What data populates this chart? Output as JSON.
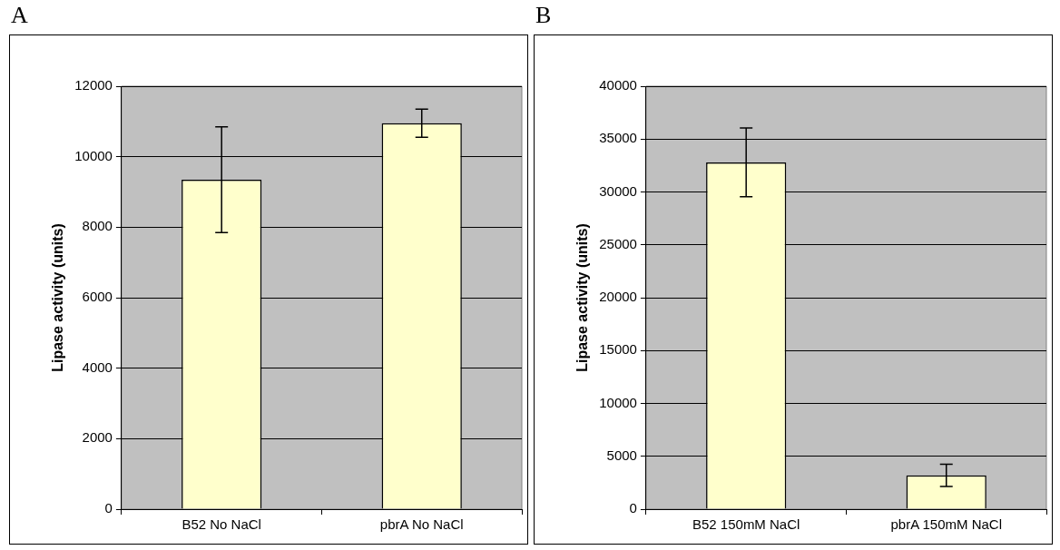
{
  "chart_data": [
    {
      "type": "bar",
      "title": "A",
      "ylabel": "Lipase activity (units)",
      "categories": [
        "B52 No NaCl",
        "pbrA No NaCl"
      ],
      "values": [
        9350,
        10950
      ],
      "errors": [
        1500,
        400
      ],
      "color": "#ffffcc",
      "ylim": [
        0,
        12000
      ],
      "yticks": [
        0,
        2000,
        4000,
        6000,
        8000,
        10000,
        12000
      ],
      "grid": "y"
    },
    {
      "type": "bar",
      "title": "B",
      "ylabel": "Lipase activity (units)",
      "categories": [
        "B52 150mM NaCl",
        "pbrA 150mM NaCl"
      ],
      "values": [
        32800,
        3200
      ],
      "errors": [
        3250,
        1050
      ],
      "color": "#ffffcc",
      "ylim": [
        0,
        40000
      ],
      "yticks": [
        0,
        5000,
        10000,
        15000,
        20000,
        25000,
        30000,
        35000,
        40000
      ],
      "grid": "y"
    }
  ]
}
